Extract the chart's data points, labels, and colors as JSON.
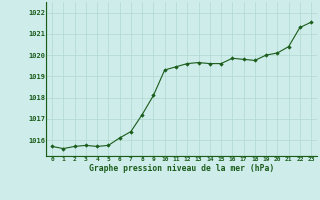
{
  "x": [
    0,
    1,
    2,
    3,
    4,
    5,
    6,
    7,
    8,
    9,
    10,
    11,
    12,
    13,
    14,
    15,
    16,
    17,
    18,
    19,
    20,
    21,
    22,
    23
  ],
  "y": [
    1015.7,
    1015.6,
    1015.7,
    1015.75,
    1015.7,
    1015.75,
    1016.1,
    1016.4,
    1017.2,
    1018.1,
    1019.3,
    1019.45,
    1019.6,
    1019.65,
    1019.6,
    1019.6,
    1019.85,
    1019.8,
    1019.75,
    1020.0,
    1020.1,
    1020.4,
    1021.3,
    1021.55
  ],
  "ylim": [
    1015.25,
    1022.5
  ],
  "yticks": [
    1016,
    1017,
    1018,
    1019,
    1020,
    1021,
    1022
  ],
  "xtick_labels": [
    "0",
    "1",
    "2",
    "3",
    "4",
    "5",
    "6",
    "7",
    "8",
    "9",
    "10",
    "11",
    "12",
    "13",
    "14",
    "15",
    "16",
    "17",
    "18",
    "19",
    "20",
    "21",
    "22",
    "23"
  ],
  "line_color": "#1a5c1a",
  "marker_color": "#1a5c1a",
  "bg_color": "#ceecea",
  "grid_color": "#b0d8d0",
  "xlabel": "Graphe pression niveau de la mer (hPa)",
  "xlabel_color": "#1a5c1a",
  "tick_color": "#1a5c1a"
}
